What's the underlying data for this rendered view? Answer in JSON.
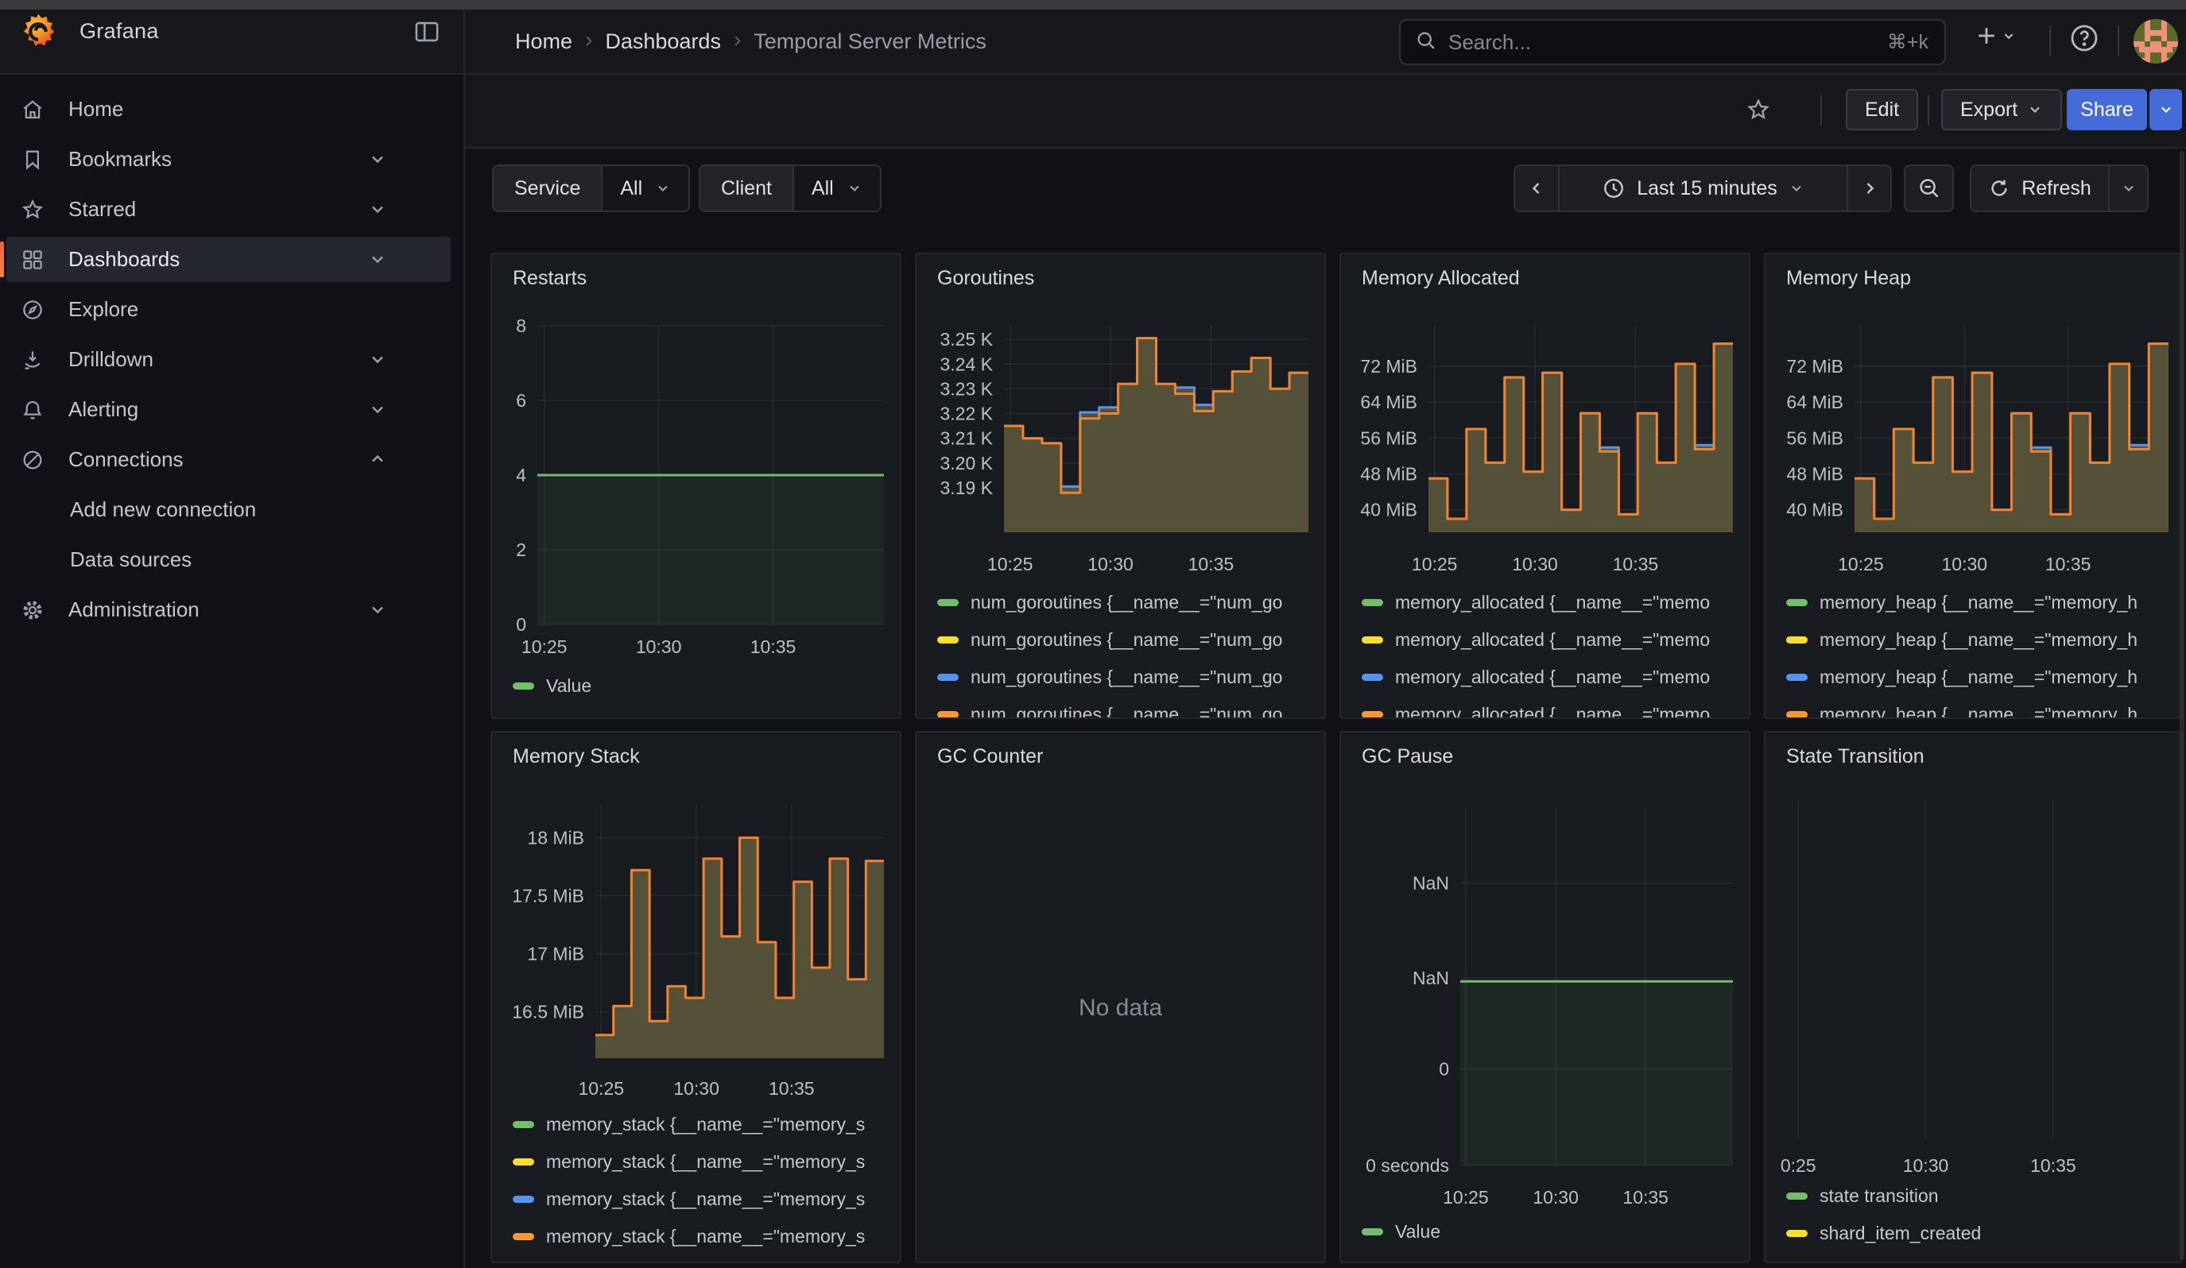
{
  "header": {
    "brand": "Grafana",
    "breadcrumb": [
      "Home",
      "Dashboards",
      "Temporal Server Metrics"
    ],
    "search": {
      "placeholder": "Search...",
      "shortcut": "⌘+k"
    }
  },
  "subheader": {
    "edit": "Edit",
    "export": "Export",
    "share": "Share"
  },
  "toolbar": {
    "service_label": "Service",
    "service_value": "All",
    "client_label": "Client",
    "client_value": "All",
    "time_range": "Last 15 minutes",
    "refresh": "Refresh"
  },
  "sidebar": {
    "items": [
      {
        "label": "Home",
        "icon": "home"
      },
      {
        "label": "Bookmarks",
        "icon": "bookmark",
        "chevron": "down"
      },
      {
        "label": "Starred",
        "icon": "star",
        "chevron": "down"
      },
      {
        "label": "Dashboards",
        "icon": "apps",
        "chevron": "down",
        "selected": true
      },
      {
        "label": "Explore",
        "icon": "compass"
      },
      {
        "label": "Drilldown",
        "icon": "drilldown",
        "chevron": "down"
      },
      {
        "label": "Alerting",
        "icon": "bell",
        "chevron": "down"
      },
      {
        "label": "Connections",
        "icon": "plug",
        "chevron": "up"
      },
      {
        "label": "Add new connection",
        "indent": true
      },
      {
        "label": "Data sources",
        "indent": true
      },
      {
        "label": "Administration",
        "icon": "gear",
        "chevron": "down"
      }
    ]
  },
  "colors": {
    "accent_blue": "#446cd8",
    "accent_orange": "#ff8833",
    "series_green": "#73BF69",
    "series_yellow": "#FADE2A",
    "series_blue": "#5794F2",
    "series_orange": "#FF9830",
    "area_fill": "#555138",
    "orange_line": "#F2832F"
  },
  "panels": [
    {
      "title": "Restarts"
    },
    {
      "title": "Goroutines"
    },
    {
      "title": "Memory Allocated"
    },
    {
      "title": "Memory Heap"
    },
    {
      "title": "Memory Stack"
    },
    {
      "title": "GC Counter",
      "no_data": "No data"
    },
    {
      "title": "GC Pause"
    },
    {
      "title": "State Transition"
    }
  ],
  "chart_data": [
    {
      "type": "area",
      "title": "Restarts",
      "ymin": 0,
      "ymax": 8,
      "yticks": [
        {
          "v": 8,
          "label": "8"
        },
        {
          "v": 6,
          "label": "6"
        },
        {
          "v": 4,
          "label": "4"
        },
        {
          "v": 2,
          "label": "2"
        },
        {
          "v": 0,
          "label": "0"
        }
      ],
      "xticks": [
        {
          "f": 0.02,
          "label": "10:25"
        },
        {
          "f": 0.35,
          "label": "10:30"
        },
        {
          "f": 0.68,
          "label": "10:35"
        }
      ],
      "series": [
        {
          "name": "Value",
          "color": "#73BF69",
          "width": 3,
          "fill": "rgba(115,191,105,0.08)",
          "values": [
            4
          ]
        }
      ],
      "legend": [
        {
          "color": "#73BF69",
          "label": "Value"
        }
      ]
    },
    {
      "type": "area",
      "title": "Goroutines",
      "ymin": 3.172,
      "ymax": 3.2555,
      "yticks": [
        {
          "v": 3.25,
          "label": "3.25 K"
        },
        {
          "v": 3.24,
          "label": "3.24 K"
        },
        {
          "v": 3.23,
          "label": "3.23 K"
        },
        {
          "v": 3.22,
          "label": "3.22 K"
        },
        {
          "v": 3.21,
          "label": "3.21 K"
        },
        {
          "v": 3.2,
          "label": "3.20 K"
        },
        {
          "v": 3.19,
          "label": "3.19 K"
        }
      ],
      "xticks": [
        {
          "f": 0.02,
          "label": "10:25"
        },
        {
          "f": 0.35,
          "label": "10:30"
        },
        {
          "f": 0.68,
          "label": "10:35"
        }
      ],
      "series": [
        {
          "name": "num_goroutines (blue)",
          "color": "#5794F2",
          "width": 3,
          "fill": "#555138",
          "values": [
            3.215,
            3.21,
            3.208,
            3.1905,
            3.2205,
            3.2225,
            3.232,
            3.2505,
            3.232,
            3.2305,
            3.2235,
            3.229,
            3.237,
            3.2425,
            3.23,
            3.2365
          ]
        },
        {
          "name": "num_goroutines (orange)",
          "color": "#F2832F",
          "width": 3,
          "fill": "#555138",
          "values": [
            3.215,
            3.21,
            3.208,
            3.188,
            3.218,
            3.22,
            3.232,
            3.2505,
            3.232,
            3.228,
            3.221,
            3.229,
            3.237,
            3.2425,
            3.23,
            3.2365
          ]
        }
      ],
      "legend": [
        {
          "color": "#73BF69",
          "label": "num_goroutines {__name__=\"num_go"
        },
        {
          "color": "#FADE2A",
          "label": "num_goroutines {__name__=\"num_go"
        },
        {
          "color": "#5794F2",
          "label": "num_goroutines {__name__=\"num_go"
        },
        {
          "color": "#FF9830",
          "label": "num_goroutines {__name__=\"num_go"
        }
      ]
    },
    {
      "type": "area",
      "title": "Memory Allocated",
      "ymin": 35,
      "ymax": 81,
      "yticks": [
        {
          "v": 72,
          "label": "72 MiB"
        },
        {
          "v": 64,
          "label": "64 MiB"
        },
        {
          "v": 56,
          "label": "56 MiB"
        },
        {
          "v": 48,
          "label": "48 MiB"
        },
        {
          "v": 40,
          "label": "40 MiB"
        }
      ],
      "xticks": [
        {
          "f": 0.02,
          "label": "10:25"
        },
        {
          "f": 0.35,
          "label": "10:30"
        },
        {
          "f": 0.68,
          "label": "10:35"
        }
      ],
      "series": [
        {
          "name": "memory_allocated (blue)",
          "color": "#5794F2",
          "width": 3,
          "fill": "#555138",
          "values": [
            47,
            38,
            58,
            50.5,
            69.5,
            48.5,
            70.5,
            40,
            61.5,
            53.9,
            39,
            61.5,
            50.5,
            72.5,
            54.4,
            77
          ]
        },
        {
          "name": "memory_allocated (orange)",
          "color": "#F2832F",
          "width": 3,
          "fill": "#555138",
          "values": [
            47,
            38,
            58,
            50.5,
            69.5,
            48.5,
            70.5,
            40,
            61.5,
            53,
            39,
            61.5,
            50.5,
            72.5,
            53.5,
            77
          ]
        }
      ],
      "legend": [
        {
          "color": "#73BF69",
          "label": "memory_allocated {__name__=\"memo"
        },
        {
          "color": "#FADE2A",
          "label": "memory_allocated {__name__=\"memo"
        },
        {
          "color": "#5794F2",
          "label": "memory_allocated {__name__=\"memo"
        },
        {
          "color": "#FF9830",
          "label": "memory_allocated {__name__=\"memo"
        }
      ]
    },
    {
      "type": "area",
      "title": "Memory Heap",
      "ymin": 35,
      "ymax": 81,
      "yticks": [
        {
          "v": 72,
          "label": "72 MiB"
        },
        {
          "v": 64,
          "label": "64 MiB"
        },
        {
          "v": 56,
          "label": "56 MiB"
        },
        {
          "v": 48,
          "label": "48 MiB"
        },
        {
          "v": 40,
          "label": "40 MiB"
        }
      ],
      "xticks": [
        {
          "f": 0.02,
          "label": "10:25"
        },
        {
          "f": 0.35,
          "label": "10:30"
        },
        {
          "f": 0.68,
          "label": "10:35"
        }
      ],
      "series": [
        {
          "name": "memory_heap (blue)",
          "color": "#5794F2",
          "width": 3,
          "fill": "#555138",
          "values": [
            47,
            38,
            58,
            50.5,
            69.5,
            48.5,
            70.5,
            40,
            61.5,
            53.9,
            39,
            61.5,
            50.5,
            72.5,
            54.4,
            77
          ]
        },
        {
          "name": "memory_heap (orange)",
          "color": "#F2832F",
          "width": 3,
          "fill": "#555138",
          "values": [
            47,
            38,
            58,
            50.5,
            69.5,
            48.5,
            70.5,
            40,
            61.5,
            53,
            39,
            61.5,
            50.5,
            72.5,
            53.5,
            77
          ]
        }
      ],
      "legend": [
        {
          "color": "#73BF69",
          "label": "memory_heap {__name__=\"memory_h"
        },
        {
          "color": "#FADE2A",
          "label": "memory_heap {__name__=\"memory_h"
        },
        {
          "color": "#5794F2",
          "label": "memory_heap {__name__=\"memory_h"
        },
        {
          "color": "#FF9830",
          "label": "memory_heap {__name__=\"memory_h"
        }
      ]
    },
    {
      "type": "area",
      "title": "Memory Stack",
      "ymin": 16.1,
      "ymax": 18.29,
      "yticks": [
        {
          "v": 18,
          "label": "18 MiB"
        },
        {
          "v": 17.5,
          "label": "17.5 MiB"
        },
        {
          "v": 17,
          "label": "17 MiB"
        },
        {
          "v": 16.5,
          "label": "16.5 MiB"
        }
      ],
      "xticks": [
        {
          "f": 0.02,
          "label": "10:25"
        },
        {
          "f": 0.35,
          "label": "10:30"
        },
        {
          "f": 0.68,
          "label": "10:35"
        }
      ],
      "series": [
        {
          "name": "memory_stack (orange)",
          "color": "#F2832F",
          "width": 3,
          "fill": "#555138",
          "values": [
            16.3,
            16.55,
            17.72,
            16.42,
            16.72,
            16.62,
            17.82,
            17.15,
            18.0,
            17.1,
            16.62,
            17.62,
            16.88,
            17.82,
            16.78,
            17.8
          ]
        }
      ],
      "legend": [
        {
          "color": "#73BF69",
          "label": "memory_stack {__name__=\"memory_s"
        },
        {
          "color": "#FADE2A",
          "label": "memory_stack {__name__=\"memory_s"
        },
        {
          "color": "#5794F2",
          "label": "memory_stack {__name__=\"memory_s"
        },
        {
          "color": "#FF9830",
          "label": "memory_stack {__name__=\"memory_s"
        }
      ]
    },
    {
      "type": "none",
      "title": "GC Counter",
      "no_data": "No data",
      "legend": []
    },
    {
      "type": "area",
      "title": "GC Pause",
      "ymin": 0,
      "ymax": 1,
      "yticks": [
        {
          "v": 0.79,
          "label": "NaN"
        },
        {
          "v": 0.525,
          "label": "NaN"
        },
        {
          "v": 0.27,
          "label": "0"
        },
        {
          "v": 0,
          "label": "0 seconds"
        }
      ],
      "xticks": [
        {
          "f": 0.02,
          "label": "10:25"
        },
        {
          "f": 0.35,
          "label": "10:30"
        },
        {
          "f": 0.68,
          "label": "10:35"
        }
      ],
      "series": [
        {
          "name": "Value",
          "color": "#73BF69",
          "width": 3,
          "fill": "rgba(115,191,105,0.08)",
          "values": [
            0.515
          ]
        }
      ],
      "legend": [
        {
          "color": "#73BF69",
          "label": "Value"
        }
      ]
    },
    {
      "type": "area",
      "title": "State Transition",
      "ymin": 0,
      "ymax": 1,
      "yticks": [],
      "xticks": [
        {
          "f": 0.06,
          "label": "0:25"
        },
        {
          "f": 0.39,
          "label": "10:30"
        },
        {
          "f": 0.72,
          "label": "10:35"
        }
      ],
      "series": [],
      "legend": [
        {
          "color": "#73BF69",
          "label": "state transition"
        },
        {
          "color": "#FADE2A",
          "label": "shard_item_created"
        }
      ]
    }
  ]
}
